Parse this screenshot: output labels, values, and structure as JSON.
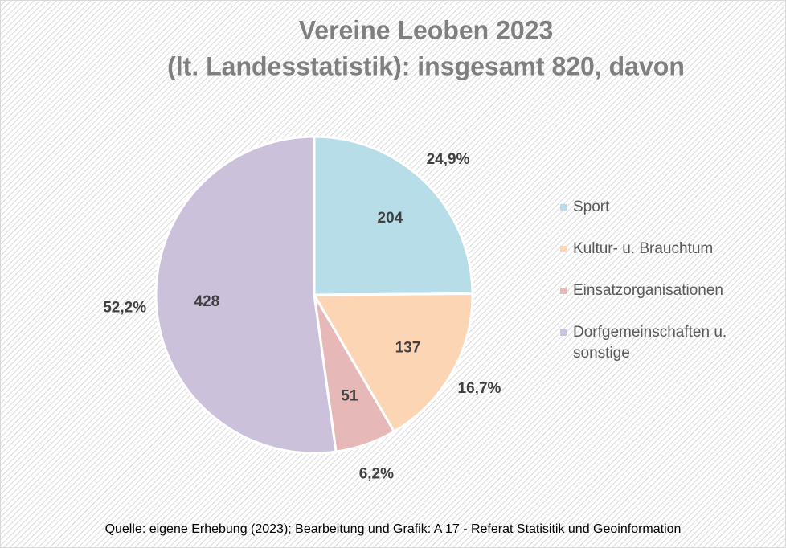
{
  "chart_data": {
    "type": "pie",
    "title": [
      "Vereine Leoben 2023",
      "(lt. Landesstatistik): insgesamt 820, davon"
    ],
    "categories": [
      "Sport",
      "Kultur- u. Brauchtum",
      "Einsatzorganisationen",
      "Dorfgemeinschaften u. sonstige"
    ],
    "values": [
      204,
      137,
      51,
      428
    ],
    "percentages": [
      24.9,
      16.7,
      6.2,
      52.2
    ],
    "percentage_labels": [
      "24,9%",
      "16,7%",
      "6,2%",
      "52,2%"
    ],
    "colors": [
      "#b7dde8",
      "#fcd5b5",
      "#e6b9b8",
      "#ccc1da"
    ],
    "legend": "right",
    "source": "Quelle: eigene Erhebung (2023); Bearbeitung und Grafik: A 17 - Referat Statisitik und Geoinformation"
  }
}
